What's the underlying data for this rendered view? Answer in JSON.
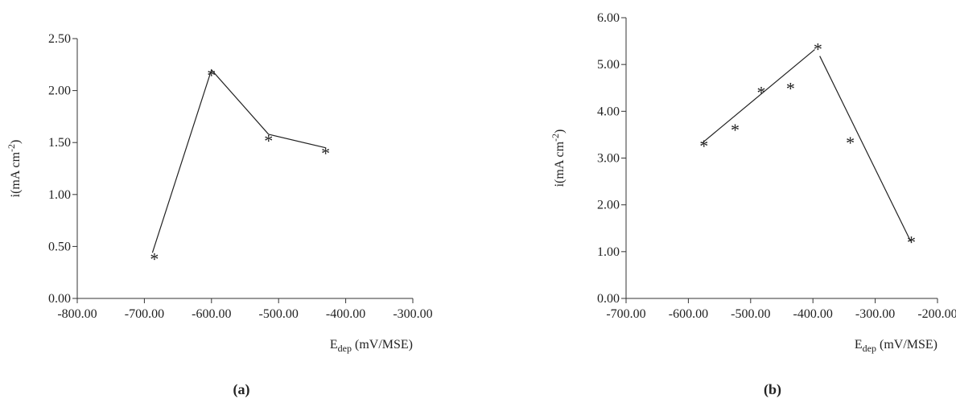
{
  "chart_data": [
    {
      "type": "line",
      "caption": "(a)",
      "xlabel": {
        "main": "E",
        "sub": "dep",
        "rest": " (mV/MSE)"
      },
      "ylabel": {
        "main": "i(mA cm",
        "sup": "-2",
        "rest": ")"
      },
      "xlim": [
        -800,
        -300
      ],
      "ylim": [
        0,
        2.5
      ],
      "xticks": [
        -800,
        -700,
        -600,
        -500,
        -400,
        -300
      ],
      "yticks": [
        0,
        0.5,
        1,
        1.5,
        2,
        2.5
      ],
      "tick_decimals": 2,
      "grid": false,
      "series": [
        {
          "marker": "*",
          "x": [
            -685,
            -600,
            -515,
            -430
          ],
          "y": [
            0.42,
            2.19,
            1.56,
            1.44
          ]
        }
      ],
      "fit_lines": [
        {
          "x": [
            -688,
            -600,
            -515,
            -430
          ],
          "y": [
            0.44,
            2.2,
            1.58,
            1.45
          ]
        }
      ]
    },
    {
      "type": "line",
      "caption": "(b)",
      "xlabel": {
        "main": "E",
        "sub": "dep",
        "rest": " (mV/MSE)"
      },
      "ylabel": {
        "main": "i(mA cm",
        "sup": "-2",
        "rest": ")"
      },
      "xlim": [
        -700,
        -200
      ],
      "ylim": [
        0,
        6
      ],
      "xticks": [
        -700,
        -600,
        -500,
        -400,
        -300,
        -200
      ],
      "yticks": [
        0,
        1,
        2,
        3,
        4,
        5,
        6
      ],
      "tick_decimals": 2,
      "grid": false,
      "series": [
        {
          "marker": "*",
          "x": [
            -575,
            -525,
            -483,
            -436,
            -392,
            -340,
            -242
          ],
          "y": [
            3.35,
            3.7,
            4.5,
            4.58,
            5.42,
            3.42,
            1.3
          ]
        }
      ],
      "fit_lines": [
        {
          "x": [
            -578,
            -397
          ],
          "y": [
            3.32,
            5.32
          ]
        },
        {
          "x": [
            -389,
            -243
          ],
          "y": [
            5.18,
            1.22
          ]
        }
      ]
    }
  ]
}
